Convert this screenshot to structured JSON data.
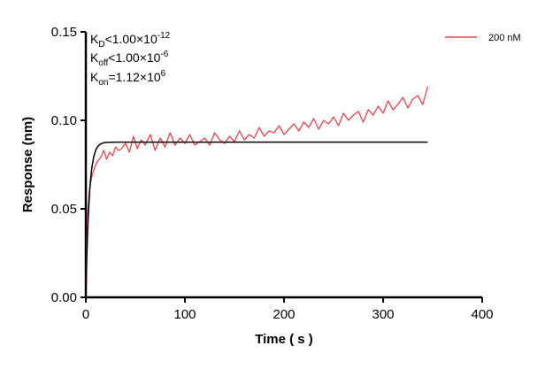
{
  "chart_data": {
    "type": "line",
    "xlabel": "Time ( s )",
    "ylabel": "Response (nm)",
    "xlim": [
      0,
      400
    ],
    "ylim": [
      0,
      0.15
    ],
    "x_ticks": [
      0,
      100,
      200,
      300,
      400
    ],
    "x_tick_labels": [
      "0",
      "100",
      "200",
      "300",
      "400"
    ],
    "y_ticks": [
      0,
      0.05,
      0.1,
      0.15
    ],
    "y_tick_labels": [
      "0.00",
      "0.05",
      "0.10",
      "0.15"
    ],
    "grid": false,
    "legend_position": "top-right",
    "annotations": {
      "kd": {
        "main": "K",
        "sub": "D",
        "rest": "<1.00×10",
        "exp": "-12"
      },
      "koff": {
        "main": "K",
        "sub": "off",
        "rest": "<1.00×10",
        "exp": "-6"
      },
      "kon": {
        "main": "K",
        "sub": "on",
        "rest": "=1.12×10",
        "exp": "6"
      }
    },
    "series": [
      {
        "name": "200 nM",
        "color": "#e0474c",
        "x": [
          0,
          1,
          2,
          3,
          4,
          6,
          8,
          10,
          12,
          15,
          18,
          21,
          24,
          27,
          30,
          33,
          36,
          40,
          44,
          48,
          52,
          56,
          60,
          65,
          70,
          75,
          80,
          85,
          90,
          95,
          100,
          105,
          110,
          115,
          120,
          125,
          130,
          135,
          140,
          145,
          150,
          155,
          160,
          165,
          170,
          175,
          180,
          185,
          190,
          195,
          200,
          205,
          210,
          215,
          220,
          225,
          230,
          235,
          240,
          245,
          250,
          255,
          260,
          265,
          270,
          275,
          280,
          285,
          290,
          295,
          300,
          305,
          310,
          315,
          320,
          325,
          330,
          335,
          340,
          345
        ],
        "y": [
          0.0,
          0.03,
          0.048,
          0.057,
          0.062,
          0.068,
          0.072,
          0.075,
          0.077,
          0.079,
          0.083,
          0.078,
          0.082,
          0.08,
          0.085,
          0.083,
          0.084,
          0.087,
          0.082,
          0.091,
          0.084,
          0.089,
          0.086,
          0.092,
          0.083,
          0.09,
          0.085,
          0.093,
          0.086,
          0.09,
          0.087,
          0.092,
          0.086,
          0.088,
          0.09,
          0.086,
          0.093,
          0.089,
          0.087,
          0.091,
          0.088,
          0.094,
          0.089,
          0.092,
          0.09,
          0.096,
          0.091,
          0.094,
          0.093,
          0.097,
          0.092,
          0.095,
          0.098,
          0.094,
          0.099,
          0.096,
          0.101,
          0.095,
          0.1,
          0.098,
          0.102,
          0.097,
          0.104,
          0.1,
          0.103,
          0.105,
          0.099,
          0.106,
          0.103,
          0.108,
          0.104,
          0.111,
          0.106,
          0.109,
          0.113,
          0.107,
          0.112,
          0.114,
          0.109,
          0.119
        ]
      },
      {
        "color": "#000000",
        "x": [
          0,
          1,
          2,
          3,
          4,
          5,
          6,
          8,
          10,
          12,
          14,
          16,
          18,
          20,
          25,
          30,
          40,
          60,
          100,
          200,
          300,
          345
        ],
        "y": [
          0.0,
          0.0225,
          0.0393,
          0.0517,
          0.0609,
          0.0678,
          0.0729,
          0.0795,
          0.0832,
          0.0852,
          0.0863,
          0.0869,
          0.0873,
          0.0875,
          0.0876,
          0.0877,
          0.0877,
          0.0877,
          0.0877,
          0.0877,
          0.0877,
          0.0877
        ]
      }
    ]
  }
}
